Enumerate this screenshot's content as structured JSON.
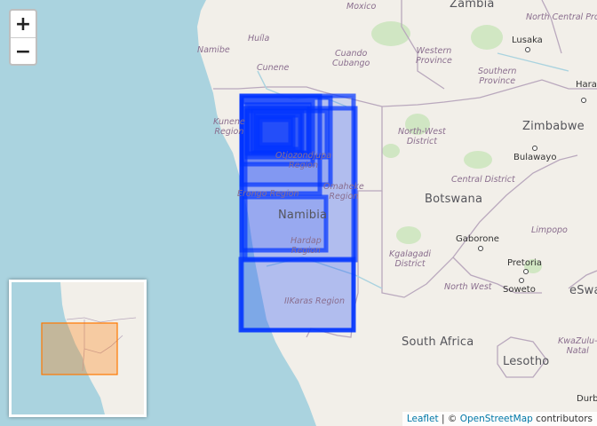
{
  "map": {
    "countries": [
      "Zambia",
      "Zimbabwe",
      "Botswana",
      "Namibia",
      "South Africa",
      "Lesotho",
      "eSwa"
    ],
    "regions": [
      "Huíla",
      "Namibe",
      "Cunene",
      "Cuando\nCubango",
      "Moxico",
      "Western\nProvince",
      "Southern\nProvince",
      "North Central Province",
      "Kunene\nRegion",
      "Otjozondjupa\nRegion",
      "Omaheke\nRegion",
      "Erongo Region",
      "Hardap\nRegion",
      "IIKaras Region",
      "North-West\nDistrict",
      "Central District",
      "Kgalagadi\nDistrict",
      "North West",
      "Limpopo",
      "KwaZulu-\nNatal"
    ],
    "cities": [
      "Lusaka",
      "Harare",
      "Bulawayo",
      "Gaborone",
      "Pretoria",
      "Soweto",
      "Durban"
    ]
  },
  "zoom": {
    "in_label": "+",
    "out_label": "−"
  },
  "attribution": {
    "leaflet": "Leaflet",
    "separator": " | © ",
    "osm": "OpenStreetMap",
    "suffix": " contributors"
  },
  "colors": {
    "overlay": "#0033ff",
    "minimap_rect": "#ff7800",
    "land": "#f2efe9",
    "water": "#aad3df",
    "border": "#b9a8bd"
  }
}
